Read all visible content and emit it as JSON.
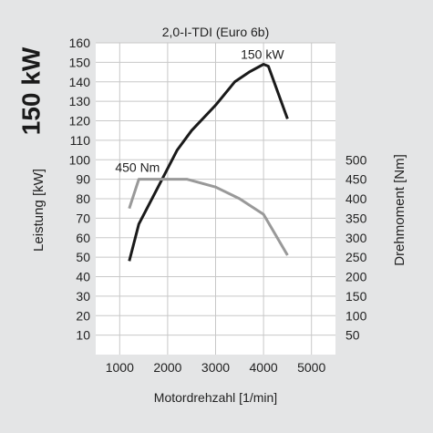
{
  "headline": "150 kW",
  "colors": {
    "background": "#e4e5e6",
    "plot_bg": "#ffffff",
    "power": "#1a1a1a",
    "torque": "#999999"
  },
  "chart_data": {
    "type": "line",
    "title": "2,0-I-TDI (Euro 6b)",
    "xlabel": "Motordrehzahl [1/min]",
    "ylabel": "Leistung [kW]",
    "y2label": "Drehmoment [Nm]",
    "xlim": [
      500,
      5500
    ],
    "xticks": [
      1000,
      2000,
      3000,
      4000,
      5000
    ],
    "ylim": [
      0,
      160
    ],
    "yticks": [
      10,
      20,
      30,
      40,
      50,
      60,
      70,
      80,
      90,
      100,
      110,
      120,
      130,
      140,
      150,
      160
    ],
    "y2lim": [
      50,
      500
    ],
    "y2ticks": [
      50,
      100,
      150,
      200,
      250,
      300,
      350,
      400,
      450,
      500
    ],
    "grid": true,
    "series": [
      {
        "name": "Leistung",
        "axis": "left",
        "x": [
          1200,
          1400,
          1800,
          2200,
          2500,
          3000,
          3400,
          3700,
          4000,
          4100,
          4500
        ],
        "y": [
          48,
          67,
          86,
          105,
          115,
          128,
          140,
          145,
          149,
          148,
          121
        ]
      },
      {
        "name": "Drehmoment",
        "axis": "right",
        "x": [
          1200,
          1400,
          2000,
          2400,
          3000,
          3500,
          4000,
          4500
        ],
        "y": [
          375,
          450,
          450,
          450,
          430,
          400,
          360,
          255
        ]
      }
    ],
    "annotations": [
      {
        "text": "150 kW",
        "series": "Leistung",
        "x": 4000,
        "y": 149
      },
      {
        "text": "450 Nm",
        "series": "Drehmoment",
        "x": 1400,
        "y": 450
      }
    ]
  }
}
